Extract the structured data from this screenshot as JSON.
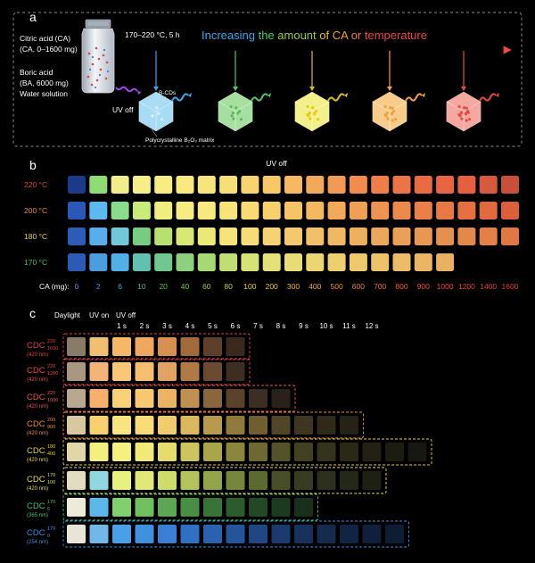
{
  "panel_a": {
    "letter": "a",
    "reagents": [
      "Citric acid (CA)",
      "(CA, 0–1600 mg)",
      "Boric acid",
      "(BA, 6000 mg)",
      "Water solution"
    ],
    "condition": "170–220 °C, 5 h",
    "banner_words": [
      {
        "text": "Increasing ",
        "color": "#3aa7e6"
      },
      {
        "text": "the ",
        "color": "#4cc86a"
      },
      {
        "text": "amount ",
        "color": "#9acd32"
      },
      {
        "text": "of ",
        "color": "#e6c020"
      },
      {
        "text": "CA ",
        "color": "#f0a030"
      },
      {
        "text": "or ",
        "color": "#f07a40"
      },
      {
        "text": "temperature",
        "color": "#e84848"
      }
    ],
    "uv_off": "UV off",
    "bcds": "B-CDs",
    "matrix": "Polycrystalline B₂O₃ matrix",
    "cubes": [
      {
        "color": "#a8dcf4",
        "dot": "#d8f0ff",
        "arrow": "#3aa7e6"
      },
      {
        "color": "#a6e0a0",
        "dot": "#5fb85a",
        "arrow": "#4cc86a"
      },
      {
        "color": "#f2f088",
        "dot": "#e9c820",
        "arrow": "#d8c020"
      },
      {
        "color": "#f8cc8a",
        "dot": "#f0a040",
        "arrow": "#f0a040"
      },
      {
        "color": "#f4a8a0",
        "dot": "#e84848",
        "arrow": "#e84848"
      }
    ]
  },
  "panel_b": {
    "letter": "b",
    "title": "UV off",
    "ca_label": "CA (mg):",
    "temps": [
      {
        "label": "220 °C",
        "color": "#e04040"
      },
      {
        "label": "200 °C",
        "color": "#f08a30"
      },
      {
        "label": "180 °C",
        "color": "#e8d040"
      },
      {
        "label": "170 °C",
        "color": "#48c070"
      }
    ],
    "ca_values": [
      {
        "v": "0",
        "color": "#3a90e0"
      },
      {
        "v": "2",
        "color": "#3a98e0"
      },
      {
        "v": "6",
        "color": "#40b0d0"
      },
      {
        "v": "10",
        "color": "#48c070"
      },
      {
        "v": "20",
        "color": "#58c858"
      },
      {
        "v": "40",
        "color": "#78cc48"
      },
      {
        "v": "60",
        "color": "#98d040"
      },
      {
        "v": "80",
        "color": "#c0d438"
      },
      {
        "v": "100",
        "color": "#e0d030"
      },
      {
        "v": "200",
        "color": "#f0c828"
      },
      {
        "v": "300",
        "color": "#f0b828"
      },
      {
        "v": "400",
        "color": "#f0a828"
      },
      {
        "v": "500",
        "color": "#f09428"
      },
      {
        "v": "600",
        "color": "#f08028"
      },
      {
        "v": "700",
        "color": "#f06c30"
      },
      {
        "v": "800",
        "color": "#ee5c34"
      },
      {
        "v": "900",
        "color": "#ec5038"
      },
      {
        "v": "1000",
        "color": "#e84440"
      },
      {
        "v": "1200",
        "color": "#e83c40"
      },
      {
        "v": "1400",
        "color": "#e63840"
      },
      {
        "v": "1600",
        "color": "#e43440"
      }
    ],
    "rows": [
      [
        "#1c3a8a",
        "#8fdc74",
        "#f2ec8a",
        "#f6ee86",
        "#f8ec82",
        "#f8ea80",
        "#f8e47c",
        "#f8de78",
        "#f8d470",
        "#f8c868",
        "#f6b860",
        "#f4a85a",
        "#f29a54",
        "#f08c50",
        "#ee7e4a",
        "#ec7446",
        "#ea6a42",
        "#e86442",
        "#e66040",
        "#d85a3c",
        "#c8503a"
      ],
      [
        "#2a58b8",
        "#5cb8f0",
        "#88dc8a",
        "#c8ec78",
        "#f0ee80",
        "#f6ec82",
        "#f8e880",
        "#f8e27a",
        "#f8da74",
        "#f8d06c",
        "#f6c464",
        "#f4b85e",
        "#f2aa58",
        "#f0a054",
        "#ee9450",
        "#ec8a4c",
        "#ea8048",
        "#e87844",
        "#e67040",
        "#e2683e",
        "#da603c"
      ],
      [
        "#2c5cb8",
        "#58aeea",
        "#70c8d8",
        "#78cc80",
        "#b8e070",
        "#d8e874",
        "#ece878",
        "#f4e47a",
        "#f6dc76",
        "#f6d272",
        "#f4c86c",
        "#f2c068",
        "#f0b862",
        "#eeb05e",
        "#eca85a",
        "#eaa056",
        "#e89852",
        "#e6904e",
        "#e4884a",
        "#e28048",
        "#e07846"
      ],
      [
        "#2c5ab4",
        "#4c9ce0",
        "#52b0e8",
        "#62c0b0",
        "#70c890",
        "#8cd080",
        "#a8d876",
        "#c0de74",
        "#d6e274",
        "#e2e276",
        "#e8dc76",
        "#ecd674",
        "#eecf70",
        "#eec86c",
        "#eec268",
        "#ecbc66",
        "#eab664",
        "#e8b060",
        "#e6aa5e",
        "#e4a45c",
        "#e29e5a"
      ]
    ]
  },
  "panel_c": {
    "letter": "c",
    "col_headers": [
      "Daylight",
      "UV on",
      "UV off"
    ],
    "time_labels": [
      "1 s",
      "2 s",
      "3 s",
      "4 s",
      "5 s",
      "6 s",
      "7 s",
      "8 s",
      "9 s",
      "10 s",
      "11 s",
      "12 s"
    ],
    "rows": [
      {
        "name": "CDC",
        "sup": "220",
        "sub": "1600",
        "wl": "(420 nm)",
        "color": "#e04040",
        "day": "#8a7a68",
        "on": "#f0c070",
        "off": [
          "#f4b868",
          "#f0a860",
          "#d8904e",
          "#a06a3a",
          "#5e402a",
          "#3a2a1e"
        ]
      },
      {
        "name": "CDC",
        "sup": "220",
        "sub": "1200",
        "wl": "(420 nm)",
        "color": "#e84848",
        "day": "#a89880",
        "on": "#f4b478",
        "off": [
          "#f8c878",
          "#f6be70",
          "#e0a460",
          "#b07a46",
          "#6a4a30",
          "#3e2e22"
        ]
      },
      {
        "name": "CDC",
        "sup": "220",
        "sub": "1000",
        "wl": "(420 nm)",
        "color": "#e85848",
        "day": "#b8a890",
        "on": "#f8b06c",
        "off": [
          "#fad078",
          "#f8c870",
          "#eab464",
          "#c09052",
          "#8a663c",
          "#5a422c",
          "#3c2e22",
          "#2a221a"
        ]
      },
      {
        "name": "CDC",
        "sup": "200",
        "sub": "900",
        "wl": "(420 nm)",
        "color": "#f08a30",
        "day": "#d8c8a0",
        "on": "#f8d070",
        "off": [
          "#fae480",
          "#f8dc78",
          "#f0cc6c",
          "#dab85e",
          "#b89a4c",
          "#907a3c",
          "#6e5e30",
          "#524628",
          "#3e3620",
          "#30291a",
          "#262218"
        ]
      },
      {
        "name": "CDC",
        "sup": "180",
        "sub": "400",
        "wl": "(420 nm)",
        "color": "#e8d040",
        "day": "#e0d6a8",
        "on": "#f4f080",
        "off": [
          "#f6f080",
          "#f0ea78",
          "#e4dc6c",
          "#ccc45c",
          "#aaa44a",
          "#8a863c",
          "#6c6a30",
          "#545228",
          "#424022",
          "#34331c",
          "#2a2918",
          "#222114",
          "#1c1c12",
          "#181812"
        ]
      },
      {
        "name": "CDC",
        "sup": "170",
        "sub": "100",
        "wl": "(420 nm)",
        "color": "#e8d860",
        "day": "#e2dcc0",
        "on": "#90d8e0",
        "off": [
          "#e8f080",
          "#e0e878",
          "#cedc6a",
          "#b4c45a",
          "#94a44a",
          "#76863c",
          "#5c6a30",
          "#484e28",
          "#383c22",
          "#2c301c",
          "#242818",
          "#1e2014"
        ]
      },
      {
        "name": "CDC",
        "sup": "170",
        "sub": "6",
        "wl": "(365 nm)",
        "color": "#48c070",
        "day": "#ecead8",
        "on": "#5cb8e8",
        "off": [
          "#80d070",
          "#70c060",
          "#5ca852",
          "#488e44",
          "#387438",
          "#2c5c2e",
          "#224826",
          "#1c3a20",
          "#18301c"
        ]
      },
      {
        "name": "CDC",
        "sup": "170",
        "sub": "0",
        "wl": "(254 nm)",
        "color": "#3a90e0",
        "day": "#e8e4d8",
        "on": "#70b8e8",
        "off": [
          "#4aa0e8",
          "#4090e0",
          "#3880d4",
          "#3070c4",
          "#2a62b0",
          "#24549a",
          "#204684",
          "#1c3a6e",
          "#18305c",
          "#142a4e",
          "#122444",
          "#10203c",
          "#0e1c34"
        ]
      }
    ]
  }
}
